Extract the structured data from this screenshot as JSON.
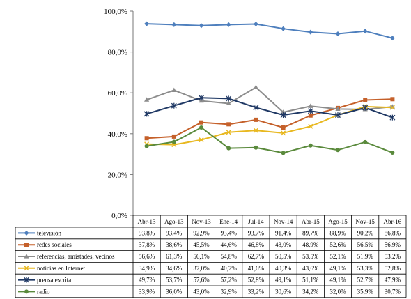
{
  "chart_data": {
    "type": "line",
    "categories": [
      "Abr-13",
      "Ago-13",
      "Nov-13",
      "Ene-14",
      "Jul-14",
      "Nov-14",
      "Abr-15",
      "Ago-15",
      "Nov-15",
      "Abr-16"
    ],
    "ylim": [
      0,
      100
    ],
    "yticks": [
      "0,0%",
      "20,0%",
      "40,0%",
      "60,0%",
      "80,0%",
      "100,0%"
    ],
    "grid": false,
    "legend": "data-table-below",
    "series": [
      {
        "name": "televisión",
        "color": "#4e7fbd",
        "marker": "diamond",
        "values": [
          93.8,
          93.4,
          92.9,
          93.4,
          93.7,
          91.4,
          89.7,
          88.9,
          90.2,
          86.8
        ],
        "labels": [
          "93,8%",
          "93,4%",
          "92,9%",
          "93,4%",
          "93,7%",
          "91,4%",
          "89,7%",
          "88,9%",
          "90,2%",
          "86,8%"
        ]
      },
      {
        "name": "redes sociales",
        "color": "#c5602a",
        "marker": "square",
        "values": [
          37.8,
          38.6,
          45.5,
          44.6,
          46.8,
          43.0,
          48.9,
          52.6,
          56.5,
          56.9
        ],
        "labels": [
          "37,8%",
          "38,6%",
          "45,5%",
          "44,6%",
          "46,8%",
          "43,0%",
          "48,9%",
          "52,6%",
          "56,5%",
          "56,9%"
        ]
      },
      {
        "name": "referencias, amistades, vecinos",
        "color": "#8c8c8c",
        "marker": "triangle",
        "values": [
          56.6,
          61.3,
          56.1,
          54.8,
          62.7,
          50.5,
          53.5,
          52.1,
          51.9,
          53.2
        ],
        "labels": [
          "56,6%",
          "61,3%",
          "56,1%",
          "54,8%",
          "62,7%",
          "50,5%",
          "53,5%",
          "52,1%",
          "51,9%",
          "53,2%"
        ]
      },
      {
        "name": "noticias en Internet",
        "color": "#e8b820",
        "marker": "x",
        "values": [
          34.9,
          34.6,
          37.0,
          40.7,
          41.6,
          40.3,
          43.6,
          49.1,
          53.3,
          52.8
        ],
        "labels": [
          "34,9%",
          "34,6%",
          "37,0%",
          "40,7%",
          "41,6%",
          "40,3%",
          "43,6%",
          "49,1%",
          "53,3%",
          "52,8%"
        ]
      },
      {
        "name": "prensa escrita",
        "color": "#1f3864",
        "marker": "star",
        "values": [
          49.7,
          53.7,
          57.6,
          57.2,
          52.8,
          49.1,
          51.1,
          49.1,
          52.7,
          47.9
        ],
        "labels": [
          "49,7%",
          "53,7%",
          "57,6%",
          "57,2%",
          "52,8%",
          "49,1%",
          "51,1%",
          "49,1%",
          "52,7%",
          "47,9%"
        ]
      },
      {
        "name": "radio",
        "color": "#5a8a3c",
        "marker": "circle",
        "values": [
          33.9,
          36.0,
          43.0,
          32.9,
          33.2,
          30.6,
          34.2,
          32.0,
          35.9,
          30.7
        ],
        "labels": [
          "33,9%",
          "36,0%",
          "43,0%",
          "32,9%",
          "33,2%",
          "30,6%",
          "34,2%",
          "32,0%",
          "35,9%",
          "30,7%"
        ]
      }
    ]
  }
}
